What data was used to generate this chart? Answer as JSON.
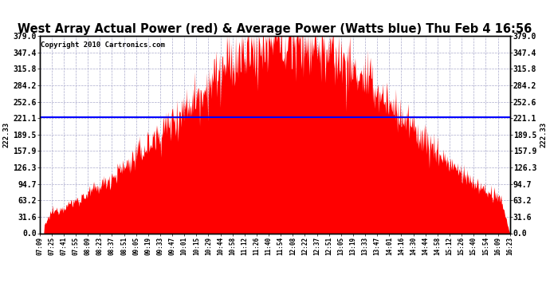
{
  "title": "West Array Actual Power (red) & Average Power (Watts blue) Thu Feb 4 16:56",
  "copyright": "Copyright 2010 Cartronics.com",
  "average_power": 222.33,
  "ymax": 379.0,
  "ymin": 0.0,
  "yticks": [
    0.0,
    31.6,
    63.2,
    94.7,
    126.3,
    157.9,
    189.5,
    221.1,
    252.6,
    284.2,
    315.8,
    347.4,
    379.0
  ],
  "ytick_labels": [
    "0.0",
    "31.6",
    "63.2",
    "94.7",
    "126.3",
    "157.9",
    "189.5",
    "221.1",
    "252.6",
    "284.2",
    "315.8",
    "347.4",
    "379.0"
  ],
  "x_labels": [
    "07:09",
    "07:25",
    "07:41",
    "07:55",
    "08:09",
    "08:23",
    "08:37",
    "08:51",
    "09:05",
    "09:19",
    "09:33",
    "09:47",
    "10:01",
    "10:15",
    "10:29",
    "10:44",
    "10:58",
    "11:12",
    "11:26",
    "11:40",
    "11:54",
    "12:08",
    "12:22",
    "12:37",
    "12:51",
    "13:05",
    "13:19",
    "13:33",
    "13:47",
    "14:01",
    "14:16",
    "14:30",
    "14:44",
    "14:58",
    "15:12",
    "15:26",
    "15:40",
    "15:54",
    "16:09",
    "16:23"
  ],
  "fill_color": "#FF0000",
  "line_color": "#0000FF",
  "bg_color": "#FFFFFF",
  "grid_color": "#AAAACC",
  "title_fontsize": 10.5,
  "avg_label": "222.33",
  "avg_label_fontsize": 6.5,
  "copyright_fontsize": 6.5,
  "tick_fontsize": 7,
  "xtick_fontsize": 5.5
}
